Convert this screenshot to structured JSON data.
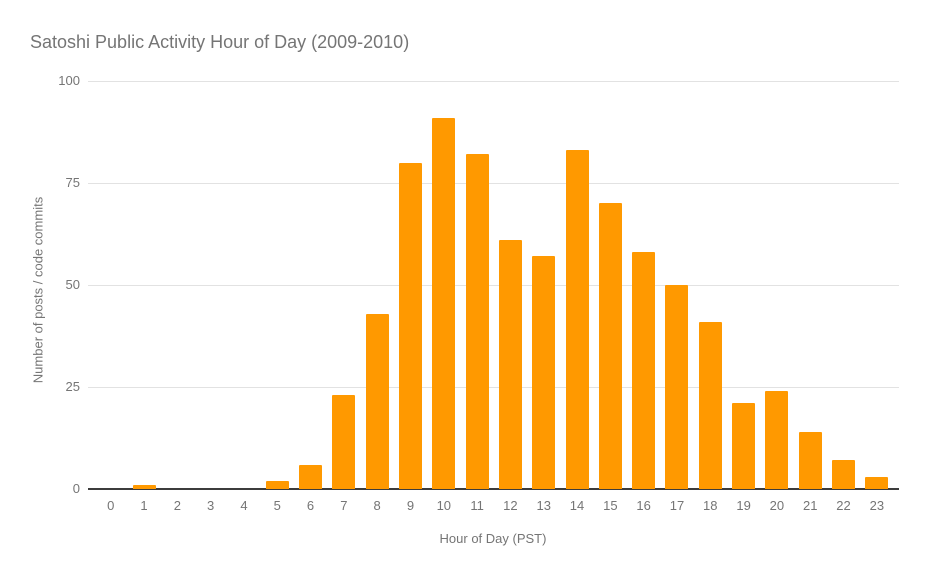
{
  "title": "Satoshi Public Activity Hour of Day (2009-2010)",
  "colors": {
    "bar": "#FF9900",
    "title_text": "#757575",
    "axis_text": "#757575",
    "gridline": "#E2E2E2",
    "baseline": "#3C3C3C",
    "background": "#FFFFFF"
  },
  "chart_data": {
    "type": "bar",
    "title": "Satoshi Public Activity Hour of Day (2009-2010)",
    "xlabel": "Hour of Day (PST)",
    "ylabel": "Number of posts / code commits",
    "categories": [
      "0",
      "1",
      "2",
      "3",
      "4",
      "5",
      "6",
      "7",
      "8",
      "9",
      "10",
      "11",
      "12",
      "13",
      "14",
      "15",
      "16",
      "17",
      "18",
      "19",
      "20",
      "21",
      "22",
      "23"
    ],
    "values": [
      0,
      1,
      0,
      0,
      0,
      2,
      6,
      23,
      43,
      80,
      91,
      82,
      61,
      57,
      83,
      70,
      58,
      50,
      41,
      21,
      24,
      14,
      7,
      3
    ],
    "ylim": [
      0,
      100
    ],
    "yticks": [
      0,
      25,
      50,
      75,
      100
    ],
    "grid": true,
    "legend": "none"
  }
}
